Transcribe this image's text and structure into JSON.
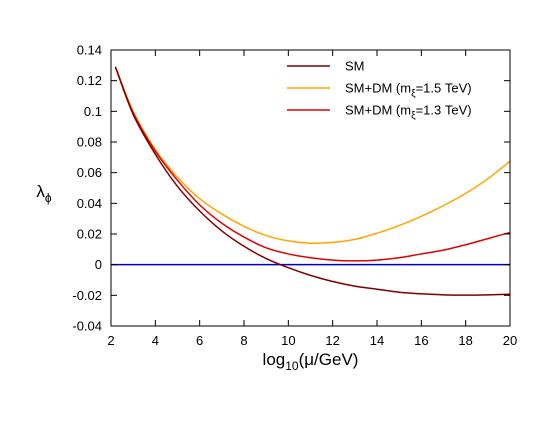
{
  "chart_data": {
    "type": "line",
    "xlabel": {
      "prefix": "log",
      "sub": "10",
      "suffix": "(μ/GeV)"
    },
    "ylabel": {
      "main": "λ",
      "sub": "ϕ"
    },
    "xlim": [
      2,
      20
    ],
    "ylim": [
      -0.04,
      0.14
    ],
    "xticks": [
      2,
      4,
      6,
      8,
      10,
      12,
      14,
      16,
      18,
      20
    ],
    "yticks": [
      -0.04,
      -0.02,
      0,
      0.02,
      0.04,
      0.06,
      0.08,
      0.1,
      0.12,
      0.14
    ],
    "xtick_labels": [
      "2",
      "4",
      "6",
      "8",
      "10",
      "12",
      "14",
      "16",
      "18",
      "20"
    ],
    "ytick_labels": [
      "-0.04",
      "-0.02",
      "0",
      "0.02",
      "0.04",
      "0.06",
      "0.08",
      "0.1",
      "0.12",
      "0.14"
    ],
    "grid": false,
    "legend_position": "top-right",
    "series": [
      {
        "name": "SM",
        "legend": {
          "main": "SM"
        },
        "color": "#7f0000",
        "x": [
          2.2,
          3,
          4,
          5,
          6,
          7,
          8,
          9,
          10,
          11,
          12,
          13,
          14,
          15,
          16,
          17,
          18,
          19,
          20
        ],
        "y": [
          0.129,
          0.098,
          0.072,
          0.051,
          0.035,
          0.022,
          0.012,
          0.004,
          -0.002,
          -0.007,
          -0.011,
          -0.014,
          -0.016,
          -0.018,
          -0.019,
          -0.0197,
          -0.0199,
          -0.0197,
          -0.0193
        ]
      },
      {
        "name": "SM+DM (mξ=1.5 TeV)",
        "legend": {
          "main": "SM+DM (m",
          "sub": "ξ",
          "tail": "=1.5 TeV)"
        },
        "color": "#ffa500",
        "x": [
          2.2,
          3,
          4,
          5,
          6,
          7,
          8,
          9,
          10,
          11,
          12,
          13,
          14,
          15,
          16,
          17,
          18,
          19,
          20
        ],
        "y": [
          0.129,
          0.1,
          0.075,
          0.057,
          0.043,
          0.033,
          0.025,
          0.019,
          0.0155,
          0.014,
          0.0145,
          0.0165,
          0.0205,
          0.0255,
          0.0315,
          0.0385,
          0.0465,
          0.056,
          0.0675
        ]
      },
      {
        "name": "SM+DM (mξ=1.3 TeV)",
        "legend": {
          "main": "SM+DM (m",
          "sub": "ξ",
          "tail": "=1.3 TeV)"
        },
        "color": "#e00000",
        "x": [
          2.2,
          3,
          4,
          5,
          6,
          7,
          8,
          9,
          10,
          11,
          12,
          13,
          14,
          15,
          16,
          17,
          18,
          19,
          20
        ],
        "y": [
          0.129,
          0.099,
          0.074,
          0.055,
          0.039,
          0.027,
          0.018,
          0.011,
          0.007,
          0.0045,
          0.003,
          0.0025,
          0.003,
          0.0045,
          0.007,
          0.0095,
          0.013,
          0.017,
          0.021
        ]
      },
      {
        "name": "zero line",
        "color": "#0000cc",
        "x": [
          2,
          20
        ],
        "y": [
          0,
          0
        ]
      }
    ]
  }
}
